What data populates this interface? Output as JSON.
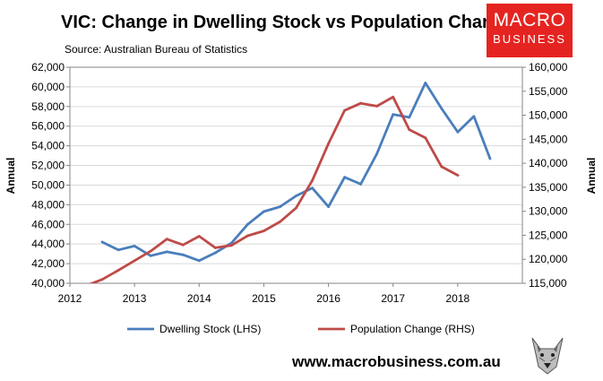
{
  "title": "VIC: Change in Dwelling Stock vs Population Change",
  "subtitle": "Source: Australian Bureau of Statistics",
  "logo": {
    "line1": "MACRO",
    "line2": "BUSINESS",
    "color": "#e52421"
  },
  "website": "www.macrobusiness.com.au",
  "chart_data": {
    "type": "line",
    "title": "VIC: Change in Dwelling Stock vs Population Change",
    "xlabel": "",
    "ylabel_left": "Annual",
    "ylabel_right": "Annual",
    "xlim": [
      2012,
      2019
    ],
    "x_ticks": [
      "2012",
      "2013",
      "2014",
      "2015",
      "2016",
      "2017",
      "2018"
    ],
    "ylim_left": [
      40000,
      62000
    ],
    "ylim_right": [
      115000,
      160000
    ],
    "y_ticks_left": [
      "40,000",
      "42,000",
      "44,000",
      "46,000",
      "48,000",
      "50,000",
      "52,000",
      "54,000",
      "56,000",
      "58,000",
      "60,000",
      "62,000"
    ],
    "y_ticks_right": [
      "115,000",
      "120,000",
      "125,000",
      "130,000",
      "135,000",
      "140,000",
      "145,000",
      "150,000",
      "155,000",
      "160,000"
    ],
    "gridlines": true,
    "legend_position": "bottom",
    "series": [
      {
        "name": "Dwelling Stock (LHS)",
        "axis": "left",
        "color": "#4a7ebb",
        "x": [
          2012.5,
          2012.75,
          2013.0,
          2013.25,
          2013.5,
          2013.75,
          2014.0,
          2014.25,
          2014.5,
          2014.75,
          2015.0,
          2015.25,
          2015.5,
          2015.75,
          2016.0,
          2016.25,
          2016.5,
          2016.75,
          2017.0,
          2017.25,
          2017.5,
          2017.75,
          2018.0,
          2018.25,
          2018.5
        ],
        "values": [
          44200,
          43400,
          43800,
          42800,
          43200,
          42900,
          42300,
          43100,
          44100,
          46000,
          47300,
          47800,
          48900,
          49700,
          47800,
          50800,
          50100,
          53200,
          57200,
          56900,
          60400,
          57800,
          55400,
          57000,
          52700
        ]
      },
      {
        "name": "Population Change (RHS)",
        "axis": "right",
        "color": "#be4b48",
        "x": [
          2012.25,
          2012.5,
          2012.75,
          2013.0,
          2013.25,
          2013.5,
          2013.75,
          2014.0,
          2014.25,
          2014.5,
          2014.75,
          2015.0,
          2015.25,
          2015.5,
          2015.75,
          2016.0,
          2016.25,
          2016.5,
          2016.75,
          2017.0,
          2017.25,
          2017.5,
          2017.75,
          2018.0
        ],
        "values": [
          114500,
          115800,
          117700,
          119700,
          121700,
          124200,
          123000,
          124800,
          122400,
          122900,
          124900,
          125900,
          127800,
          130700,
          136400,
          144100,
          151000,
          152500,
          151900,
          153800,
          147000,
          145300,
          139300,
          137500
        ]
      }
    ]
  }
}
